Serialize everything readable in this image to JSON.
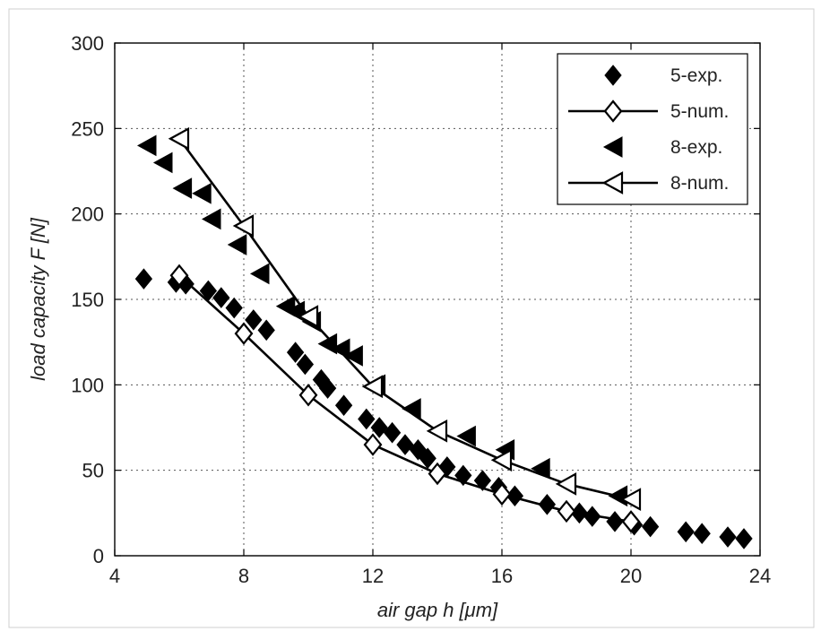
{
  "chart_data": {
    "type": "scatter",
    "xlabel": "air gap h",
    "xunit": "μm",
    "ylabel": "load capacity F",
    "yunit": "N",
    "xlim": [
      4,
      24
    ],
    "ylim": [
      0,
      300
    ],
    "xticks": [
      4,
      8,
      12,
      16,
      20,
      24
    ],
    "yticks": [
      0,
      50,
      100,
      150,
      200,
      250,
      300
    ],
    "grid": true,
    "legend_position": "top-right",
    "series": [
      {
        "name": "5-exp.",
        "marker": "filled-diamond",
        "line": false,
        "x": [
          4.9,
          5.9,
          6.2,
          6.9,
          7.3,
          7.7,
          8.3,
          8.7,
          9.6,
          9.9,
          10.4,
          10.6,
          11.1,
          11.8,
          12.2,
          12.6,
          13.0,
          13.4,
          13.7,
          14.3,
          14.8,
          15.4,
          15.9,
          16.4,
          17.4,
          18.4,
          18.8,
          19.5,
          20.1,
          20.6,
          21.7,
          22.2,
          23.0,
          23.5
        ],
        "y": [
          162,
          160,
          159,
          155,
          151,
          145,
          138,
          132,
          119,
          112,
          103,
          98,
          88,
          80,
          75,
          72,
          65,
          62,
          57,
          52,
          47,
          44,
          40,
          35,
          30,
          25,
          23,
          20,
          18,
          17,
          14,
          13,
          11,
          10
        ]
      },
      {
        "name": "5-num.",
        "marker": "open-diamond",
        "line": true,
        "x": [
          6,
          8,
          10,
          12,
          14,
          16,
          18,
          20
        ],
        "y": [
          164,
          130,
          94,
          65,
          48,
          36,
          26,
          20
        ]
      },
      {
        "name": "8-exp.",
        "marker": "filled-triangle-left",
        "line": false,
        "x": [
          5.0,
          5.5,
          6.1,
          6.7,
          7.0,
          7.8,
          8.5,
          9.3,
          9.6,
          10.1,
          10.6,
          11.0,
          11.4,
          12.1,
          13.2,
          14.0,
          14.9,
          16.1,
          17.2,
          19.6
        ],
        "y": [
          240,
          230,
          215,
          212,
          197,
          182,
          165,
          146,
          143,
          137,
          124,
          121,
          117,
          100,
          86,
          73,
          70,
          62,
          51,
          35
        ]
      },
      {
        "name": "8-num.",
        "marker": "open-triangle-left",
        "line": true,
        "x": [
          6,
          8,
          10,
          12,
          14,
          16,
          18,
          20
        ],
        "y": [
          244,
          193,
          140,
          99,
          73,
          56,
          42,
          33
        ]
      }
    ]
  }
}
